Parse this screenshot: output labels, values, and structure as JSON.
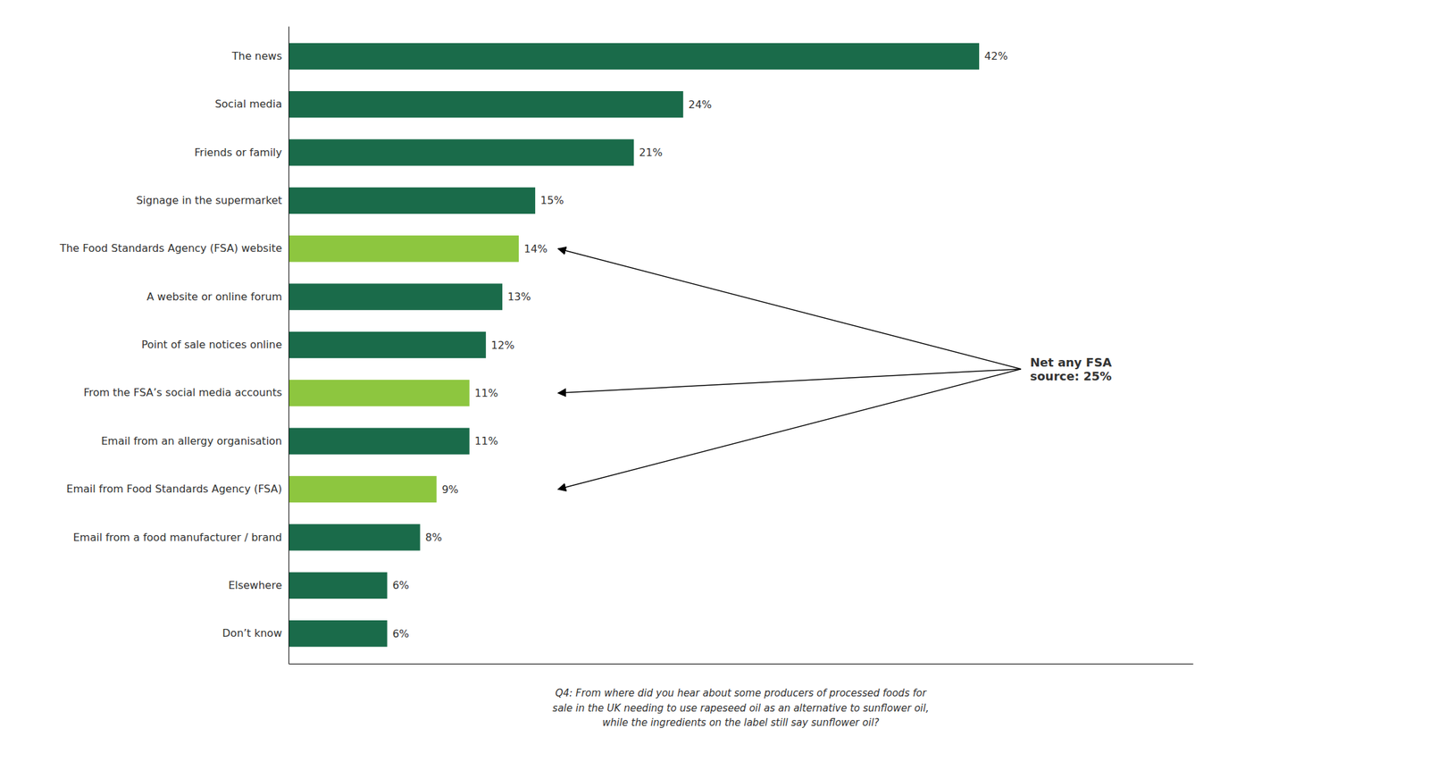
{
  "chart_data": {
    "type": "bar",
    "orientation": "horizontal",
    "categories": [
      "The news",
      "Social media",
      "Friends or family",
      "Signage in the supermarket",
      "The Food Standards Agency (FSA) website",
      "A website or online forum",
      "Point of sale notices online",
      "From the FSA’s social media accounts",
      "Email from an allergy organisation",
      "Email from Food Standards Agency (FSA)",
      "Email from a food manufacturer / brand",
      "Elsewhere",
      "Don’t know"
    ],
    "values": [
      42,
      24,
      21,
      15,
      14,
      13,
      12,
      11,
      11,
      9,
      8,
      6,
      6
    ],
    "value_labels": [
      "42%",
      "24%",
      "21%",
      "15%",
      "14%",
      "13%",
      "12%",
      "11%",
      "11%",
      "9%",
      "8%",
      "6%",
      "6%"
    ],
    "colors": [
      "#1a6b4a",
      "#1a6b4a",
      "#1a6b4a",
      "#1a6b4a",
      "#8dc63f",
      "#1a6b4a",
      "#1a6b4a",
      "#8dc63f",
      "#1a6b4a",
      "#8dc63f",
      "#1a6b4a",
      "#1a6b4a",
      "#1a6b4a"
    ],
    "xlim": [
      0,
      55
    ],
    "data_labels": true,
    "tick_labels": "y",
    "grid": false,
    "annotations": [
      {
        "text": "Net any FSA\nsource: 25%",
        "points_to": [
          "The Food Standards Agency (FSA) website",
          "From the FSA’s social media accounts",
          "Email from Food Standards Agency (FSA)"
        ]
      },
      {
        "text": "Q4: From where did you hear about some producers of processed foods for\nsale in the UK needing to use rapeseed oil as an alternative to sunflower oil,\nwhile the ingredients on the label still say sunflower oil?"
      }
    ]
  }
}
